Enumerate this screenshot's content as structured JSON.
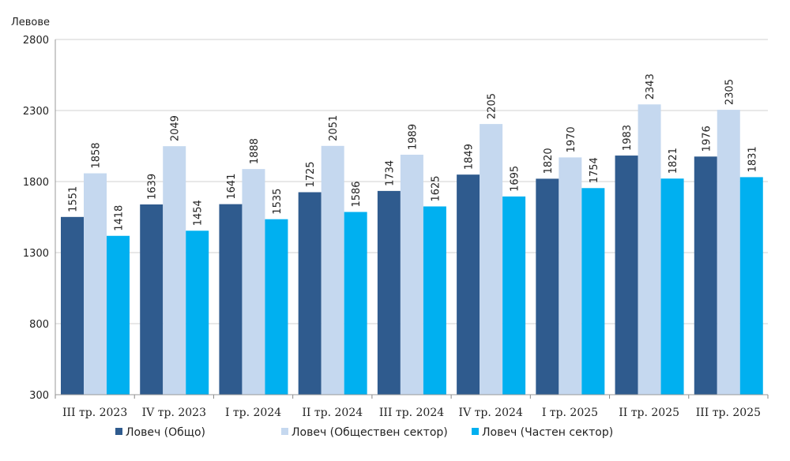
{
  "chart_data": {
    "type": "bar",
    "ylabel": "Левове",
    "ylim": [
      300,
      2800
    ],
    "yticks": [
      300,
      800,
      1300,
      1800,
      2300,
      2800
    ],
    "grid": true,
    "legend_position": "bottom",
    "categories": [
      "III тр. 2023",
      "IV тр. 2023",
      "I тр. 2024",
      "II тр. 2024",
      "III тр. 2024",
      "IV тр. 2024",
      "I тр. 2025",
      "II тр. 2025",
      "III тр. 2025"
    ],
    "series": [
      {
        "name": "Ловеч (Общо)",
        "color": "#2f5b8e",
        "values": [
          1551,
          1639,
          1641,
          1725,
          1734,
          1849,
          1820,
          1983,
          1976
        ]
      },
      {
        "name": "Ловеч (Обществен сектор)",
        "color": "#c5d8ef",
        "values": [
          1858,
          2049,
          1888,
          2051,
          1989,
          2205,
          1970,
          2343,
          2305
        ]
      },
      {
        "name": "Ловеч (Частен сектор)",
        "color": "#00b0f0",
        "values": [
          1418,
          1454,
          1535,
          1586,
          1625,
          1695,
          1754,
          1821,
          1831
        ]
      }
    ]
  }
}
